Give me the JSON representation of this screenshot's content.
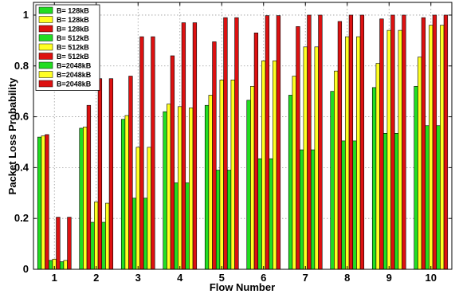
{
  "chart_data": {
    "type": "bar",
    "xlabel": "Flow Number",
    "ylabel": "Packet Loss Probability",
    "ylim": [
      0,
      1.05
    ],
    "xlim": [
      0.5,
      10.5
    ],
    "grid": true,
    "legend_position": "top-left",
    "yticks": [
      "0",
      "0.2",
      "0.4",
      "0.6",
      "0.8",
      "1"
    ],
    "yticks_values": [
      0,
      0.2,
      0.4,
      0.6,
      0.8,
      1.0
    ],
    "categories": [
      "1",
      "2",
      "3",
      "4",
      "5",
      "6",
      "7",
      "8",
      "9",
      "10"
    ],
    "series": [
      {
        "name": "B=  128kB",
        "color": "#22dd22",
        "values": [
          0.52,
          0.555,
          0.59,
          0.62,
          0.645,
          0.665,
          0.685,
          0.7,
          0.715,
          0.72
        ]
      },
      {
        "name": "B=  128kB",
        "color": "#ffff22",
        "values": [
          0.525,
          0.56,
          0.605,
          0.65,
          0.685,
          0.72,
          0.76,
          0.78,
          0.81,
          0.835
        ]
      },
      {
        "name": "B=  128kB",
        "color": "#dd1111",
        "values": [
          0.53,
          0.645,
          0.76,
          0.84,
          0.895,
          0.93,
          0.955,
          0.975,
          0.985,
          0.99
        ]
      },
      {
        "name": "B=  512kB",
        "color": "#22dd22",
        "values": [
          0.035,
          0.185,
          0.28,
          0.34,
          0.39,
          0.435,
          0.47,
          0.505,
          0.535,
          0.565
        ]
      },
      {
        "name": "B=  512kB",
        "color": "#ffff22",
        "values": [
          0.04,
          0.265,
          0.48,
          0.64,
          0.745,
          0.82,
          0.875,
          0.915,
          0.94,
          0.96
        ]
      },
      {
        "name": "B=  512kB",
        "color": "#dd1111",
        "values": [
          0.205,
          0.75,
          0.915,
          0.97,
          0.99,
          0.998,
          1.0,
          1.0,
          1.0,
          1.0
        ]
      },
      {
        "name": "B=2048kB",
        "color": "#22dd22",
        "values": [
          0.03,
          0.185,
          0.28,
          0.34,
          0.39,
          0.435,
          0.47,
          0.505,
          0.535,
          0.565
        ]
      },
      {
        "name": "B=2048kB",
        "color": "#ffff22",
        "values": [
          0.035,
          0.26,
          0.48,
          0.635,
          0.745,
          0.82,
          0.875,
          0.915,
          0.94,
          0.96
        ]
      },
      {
        "name": "B=2048kB",
        "color": "#dd1111",
        "values": [
          0.205,
          0.75,
          0.915,
          0.97,
          0.99,
          0.998,
          1.0,
          1.0,
          1.0,
          1.0
        ]
      }
    ]
  }
}
